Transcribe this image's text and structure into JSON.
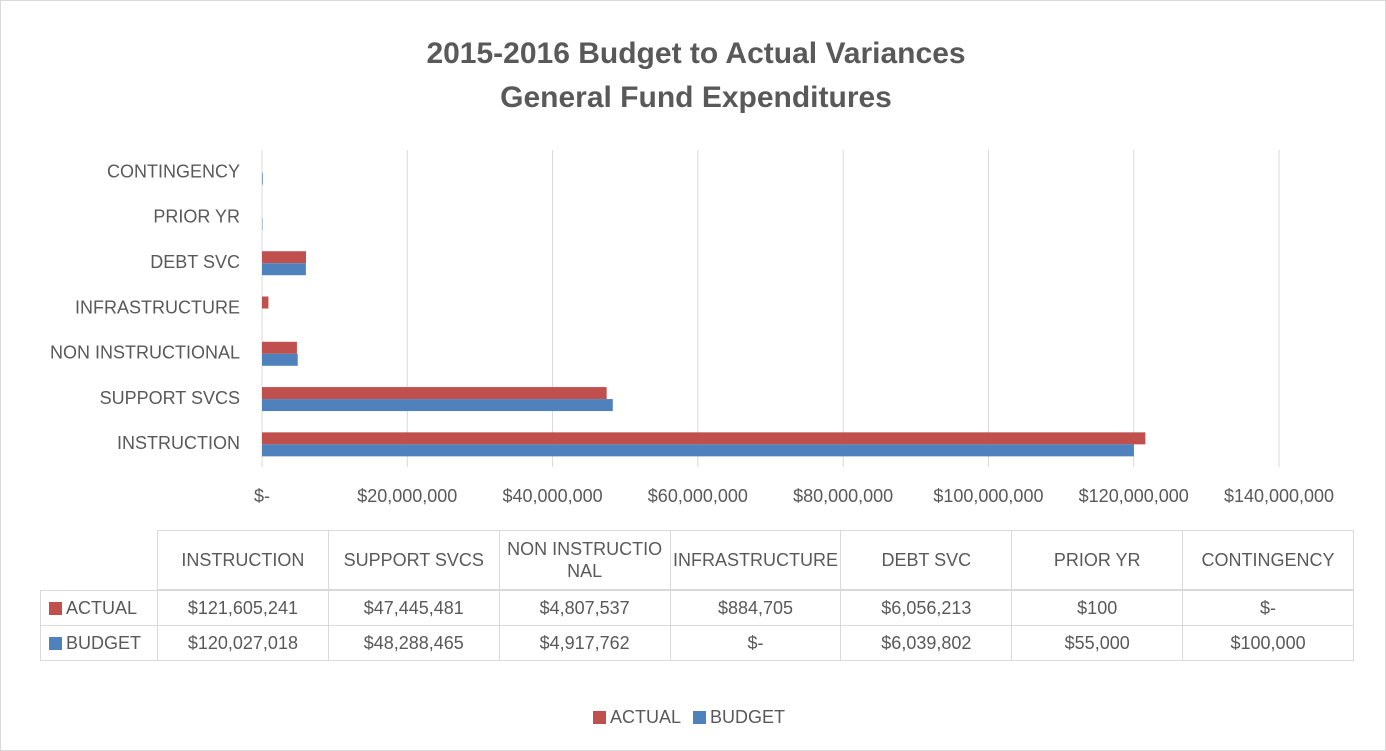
{
  "chart_data": {
    "type": "bar",
    "orientation": "horizontal",
    "title": "2015-2016 Budget to Actual Variances",
    "subtitle": "General Fund Expenditures",
    "categories": [
      "INSTRUCTION",
      "SUPPORT SVCS",
      "NON INSTRUCTIONAL",
      "INFRASTRUCTURE",
      "DEBT SVC",
      "PRIOR YR",
      "CONTINGENCY"
    ],
    "series": [
      {
        "name": "ACTUAL",
        "color": "#c0504d",
        "values": [
          121605241,
          47445481,
          4807537,
          884705,
          6056213,
          100,
          0
        ],
        "value_labels": [
          "$121,605,241",
          "$47,445,481",
          "$4,807,537",
          "$884,705",
          "$6,056,213",
          "$100",
          "$-"
        ]
      },
      {
        "name": "BUDGET",
        "color": "#4f81bd",
        "values": [
          120027018,
          48288465,
          4917762,
          0,
          6039802,
          55000,
          100000
        ],
        "value_labels": [
          "$120,027,018",
          "$48,288,465",
          "$4,917,762",
          "$-",
          "$6,039,802",
          "$55,000",
          "$100,000"
        ]
      }
    ],
    "xlim": [
      0,
      140000000
    ],
    "xticks": [
      {
        "value": 0,
        "label": "$-"
      },
      {
        "value": 20000000,
        "label": "$20,000,000"
      },
      {
        "value": 40000000,
        "label": "$40,000,000"
      },
      {
        "value": 60000000,
        "label": "$60,000,000"
      },
      {
        "value": 80000000,
        "label": "$80,000,000"
      },
      {
        "value": 100000000,
        "label": "$100,000,000"
      },
      {
        "value": 120000000,
        "label": "$120,000,000"
      },
      {
        "value": 140000000,
        "label": "$140,000,000"
      }
    ],
    "grid": true,
    "legend": "bottom"
  }
}
